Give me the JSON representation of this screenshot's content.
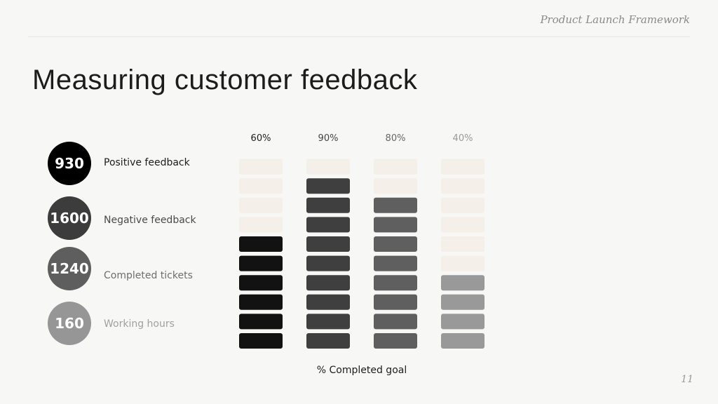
{
  "header": {
    "framework_label": "Product Launch Framework"
  },
  "title": "Measuring customer feedback",
  "metrics": [
    {
      "value": "930",
      "label": "Positive feedback",
      "color": "#000000",
      "label_color": "#1c1c1c"
    },
    {
      "value": "1600",
      "label": "Negative feedback",
      "color": "#3c3c3c",
      "label_color": "#4a4a4a"
    },
    {
      "value": "1240",
      "label": "Completed tickets",
      "color": "#5e5e5e",
      "label_color": "#6e6e6e"
    },
    {
      "value": "160",
      "label": "Working hours",
      "color": "#969696",
      "label_color": "#a0a0a0"
    }
  ],
  "chart_data": {
    "type": "bar",
    "xlabel": "% Completed goal",
    "segments_per_bar": 10,
    "categories": [
      "60%",
      "90%",
      "80%",
      "40%"
    ],
    "values": [
      60,
      90,
      80,
      40
    ],
    "filled_colors": [
      "#121212",
      "#3f3f3f",
      "#5f5f5f",
      "#999999"
    ],
    "empty_color": "#f4efe8",
    "tick_label_colors": [
      "#1c1c1c",
      "#444444",
      "#666666",
      "#999999"
    ],
    "ylim": [
      0,
      100
    ]
  },
  "page_number": "11"
}
